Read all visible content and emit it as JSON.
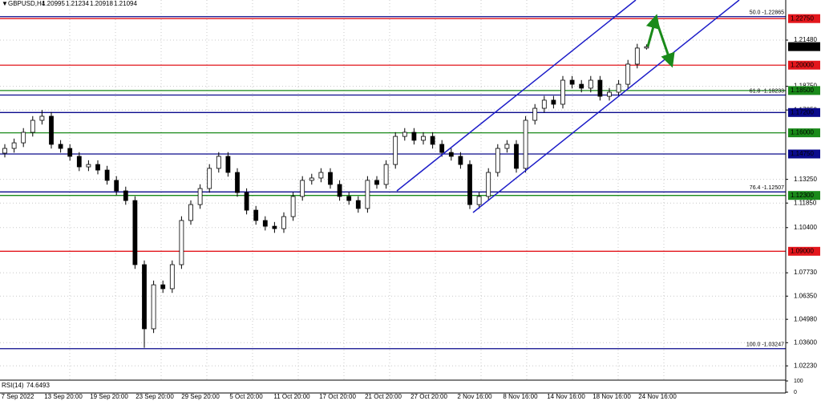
{
  "chart_data": {
    "type": "candlestick",
    "title": "GBPUSD,H4",
    "header_values": [
      1.20995,
      1.21234,
      1.20918,
      1.21094
    ],
    "last_price": 1.21094,
    "ylim": [
      1.0148,
      1.2385
    ],
    "yticks": [
      {
        "value": 1.0223,
        "label": "1.02230"
      },
      {
        "value": 1.036,
        "label": "1.03600"
      },
      {
        "value": 1.0498,
        "label": "1.04980"
      },
      {
        "value": 1.0635,
        "label": "1.06350"
      },
      {
        "value": 1.0773,
        "label": "1.07730"
      },
      {
        "value": 1.104,
        "label": "1.10400"
      },
      {
        "value": 1.1185,
        "label": "1.11850"
      },
      {
        "value": 1.1325,
        "label": "1.13250"
      },
      {
        "value": 1.1735,
        "label": "1.17350"
      },
      {
        "value": 1.1875,
        "label": "1.18750"
      },
      {
        "value": 1.2148,
        "label": "1.21480"
      }
    ],
    "grid": true,
    "up_color": "#ffffff",
    "down_color": "#000000",
    "x_labels": [
      "7 Sep 2022",
      "13 Sep 20:00",
      "19 Sep 20:00",
      "23 Sep 20:00",
      "29 Sep 20:00",
      "5 Oct 20:00",
      "11 Oct 20:00",
      "17 Oct 20:00",
      "21 Oct 20:00",
      "27 Oct 20:00",
      "2 Nov 16:00",
      "8 Nov 16:00",
      "14 Nov 16:00",
      "18 Nov 16:00",
      "24 Nov 16:00"
    ],
    "open": [
      1.148,
      1.1508,
      1.1541,
      1.1603,
      1.1674,
      1.1698,
      1.1532,
      1.1508,
      1.1461,
      1.1399,
      1.1413,
      1.138,
      1.1319,
      1.1257,
      1.12,
      1.0821,
      1.0442,
      1.0702,
      1.0679,
      1.0821,
      1.1082,
      1.1176,
      1.1271,
      1.139,
      1.1461,
      1.1366,
      1.1247,
      1.1143,
      1.1082,
      1.1048,
      1.1034,
      1.1105,
      1.1224,
      1.1319,
      1.1333,
      1.1366,
      1.1295,
      1.1224,
      1.12,
      1.1153,
      1.1319,
      1.1295,
      1.1413,
      1.1579,
      1.1603,
      1.1556,
      1.1579,
      1.1532,
      1.1484,
      1.1461,
      1.1413,
      1.1176,
      1.1224,
      1.1366,
      1.1508,
      1.1532,
      1.139,
      1.1674,
      1.1745,
      1.1793,
      1.1769,
      1.1911,
      1.1887,
      1.1864,
      1.1911,
      1.1816,
      1.184,
      1.1887,
      1.2006,
      1.2101
    ],
    "high": [
      1.1533,
      1.1566,
      1.1628,
      1.1699,
      1.1735,
      1.1723,
      1.1557,
      1.1533,
      1.1486,
      1.1438,
      1.1438,
      1.1405,
      1.1344,
      1.1282,
      1.1225,
      1.0846,
      1.0727,
      1.0727,
      1.0846,
      1.1107,
      1.1201,
      1.1296,
      1.1415,
      1.1486,
      1.1486,
      1.1391,
      1.1272,
      1.1168,
      1.1107,
      1.1073,
      1.113,
      1.1249,
      1.1344,
      1.1358,
      1.1391,
      1.1391,
      1.132,
      1.1249,
      1.1225,
      1.1344,
      1.1344,
      1.1438,
      1.1604,
      1.1628,
      1.1628,
      1.1604,
      1.1604,
      1.1557,
      1.1509,
      1.1486,
      1.1438,
      1.1249,
      1.1391,
      1.1533,
      1.1557,
      1.1557,
      1.1699,
      1.177,
      1.1818,
      1.1818,
      1.1936,
      1.1936,
      1.1912,
      1.1936,
      1.1936,
      1.1865,
      1.1912,
      1.2031,
      1.2126,
      1.2123
    ],
    "low": [
      1.1455,
      1.1483,
      1.1516,
      1.1578,
      1.1649,
      1.1507,
      1.1483,
      1.1436,
      1.1374,
      1.1374,
      1.1355,
      1.1294,
      1.1232,
      1.1175,
      1.0796,
      1.033,
      1.0417,
      1.0654,
      1.0654,
      1.0796,
      1.1057,
      1.1151,
      1.1246,
      1.1365,
      1.1341,
      1.1222,
      1.1118,
      1.1057,
      1.1023,
      1.1009,
      1.1009,
      1.108,
      1.1199,
      1.1294,
      1.1308,
      1.127,
      1.1199,
      1.1175,
      1.1128,
      1.1128,
      1.127,
      1.127,
      1.1388,
      1.1554,
      1.1531,
      1.1531,
      1.1507,
      1.1459,
      1.1436,
      1.1388,
      1.115,
      1.1151,
      1.1199,
      1.1341,
      1.1483,
      1.1365,
      1.1365,
      1.1649,
      1.172,
      1.1744,
      1.1744,
      1.1862,
      1.1839,
      1.1839,
      1.1791,
      1.1791,
      1.1815,
      1.1862,
      1.1981,
      1.2092
    ],
    "close": [
      1.1508,
      1.1541,
      1.1603,
      1.1674,
      1.1698,
      1.1532,
      1.1508,
      1.1461,
      1.1399,
      1.1413,
      1.138,
      1.1319,
      1.1257,
      1.12,
      1.0821,
      1.0442,
      1.0702,
      1.0679,
      1.0821,
      1.1082,
      1.1176,
      1.1271,
      1.139,
      1.1461,
      1.1366,
      1.1247,
      1.1143,
      1.1082,
      1.1048,
      1.1034,
      1.1105,
      1.1224,
      1.1319,
      1.1333,
      1.1366,
      1.1295,
      1.1224,
      1.12,
      1.1153,
      1.1319,
      1.1295,
      1.1413,
      1.1579,
      1.1603,
      1.1556,
      1.1579,
      1.1532,
      1.1484,
      1.1461,
      1.1413,
      1.1176,
      1.1224,
      1.1366,
      1.1508,
      1.1532,
      1.139,
      1.1674,
      1.1745,
      1.1793,
      1.1769,
      1.1911,
      1.1887,
      1.1864,
      1.1911,
      1.1816,
      1.184,
      1.1887,
      1.2006,
      1.2101,
      1.2109
    ],
    "levels": [
      {
        "value": 1.2275,
        "label": "1.22750",
        "color": "#e3161c"
      },
      {
        "value": 1.2,
        "label": "1.20000",
        "color": "#e3161c"
      },
      {
        "value": 1.185,
        "label": "1.18500",
        "color": "#1a8a1a"
      },
      {
        "value": 1.172,
        "label": "1.17200",
        "color": "#0a0a8c"
      },
      {
        "value": 1.16,
        "label": "1.16000",
        "color": "#1a8a1a"
      },
      {
        "value": 1.1475,
        "label": "1.14750",
        "color": "#0a0a8c"
      },
      {
        "value": 1.123,
        "label": "1.12300",
        "color": "#1a8a1a"
      },
      {
        "value": 1.09,
        "label": "1.09000",
        "color": "#e3161c"
      }
    ],
    "fib_levels": [
      {
        "value": 1.22865,
        "label": "50.0 -1.22865"
      },
      {
        "value": 1.18233,
        "label": "61.8 -1.18233"
      },
      {
        "value": 1.12507,
        "label": "76.4 -1.12507"
      },
      {
        "value": 1.03247,
        "label": "100.0 -1.03247"
      }
    ],
    "fib_color": "#0a0a8c",
    "rsi": {
      "label": "RSI(14)",
      "value": 74.6493,
      "ylim": [
        0,
        100
      ],
      "yticks": [
        100,
        0
      ]
    }
  }
}
